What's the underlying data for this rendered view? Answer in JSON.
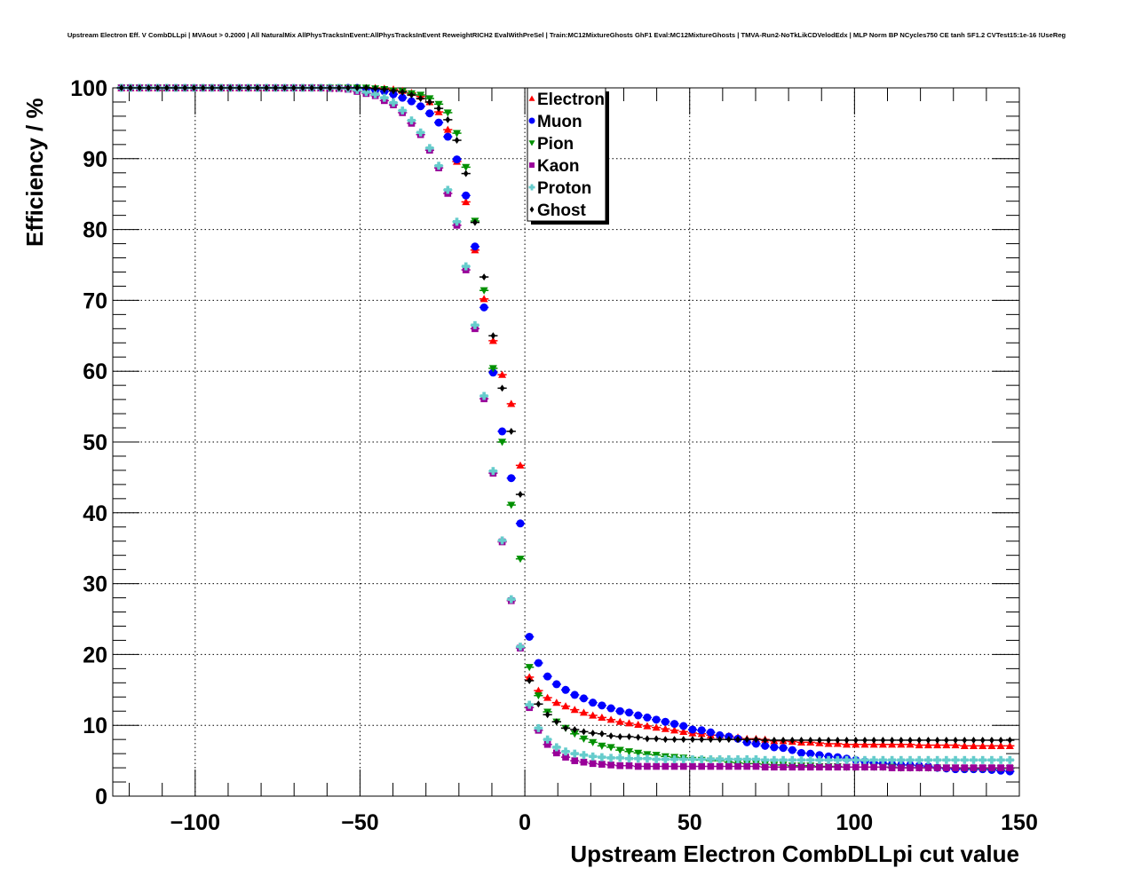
{
  "chart_data": {
    "type": "scatter",
    "title": "Upstream Electron Eff. V CombDLLpi | MVAout > 0.2000 | All NaturalMix AllPhysTracksInEvent:AllPhysTracksInEvent ReweightRICH2 EvalWithPreSel | Train:MC12MixtureGhosts GhF1 Eval:MC12MixtureGhosts | TMVA-Run2-NoTkLikCDVelodEdx | MLP Norm BP NCycles750 CE tanh SF1.2 CVTest15:1e-16 !UseReg",
    "xlabel": "Upstream Electron CombDLLpi cut value",
    "ylabel": "Efficiency / %",
    "xlim": [
      -125,
      150
    ],
    "ylim": [
      0,
      100
    ],
    "grid": true,
    "legend_placement": "top-center",
    "xticks": [
      "−100",
      "−50",
      "0",
      "50",
      "100",
      "150"
    ],
    "xtick_values": [
      -100,
      -50,
      0,
      50,
      100,
      150
    ],
    "yticks": [
      "0",
      "10",
      "20",
      "30",
      "40",
      "50",
      "60",
      "70",
      "80",
      "90",
      "100"
    ],
    "ytick_values": [
      0,
      10,
      20,
      30,
      40,
      50,
      60,
      70,
      80,
      90,
      100
    ],
    "x": {
      "first": -125.125,
      "step": 2.75,
      "count": 100
    },
    "series": [
      {
        "name": "Electron",
        "color": "#ff0000",
        "marker": "triangle-up",
        "values": [
          100,
          100,
          100,
          100,
          100,
          100,
          100,
          100,
          100,
          100,
          100,
          100,
          100,
          100,
          100,
          100,
          100,
          100,
          100,
          100,
          100,
          100,
          100,
          100,
          100,
          100,
          100,
          100,
          100,
          100,
          99.9,
          99.8,
          99.6,
          99.3,
          98.8,
          98.0,
          96.6,
          94.1,
          89.6,
          83.9,
          77.1,
          70.2,
          64.3,
          59.5,
          55.4,
          46.7,
          16.8,
          14.9,
          13.9,
          13.2,
          12.7,
          12.2,
          11.8,
          11.4,
          11.1,
          10.8,
          10.5,
          10.3,
          10.1,
          9.9,
          9.7,
          9.5,
          9.3,
          9.1,
          8.9,
          8.8,
          8.6,
          8.6,
          8.5,
          8.3,
          8.1,
          8.1,
          8.0,
          7.8,
          7.8,
          7.7,
          7.6,
          7.6,
          7.5,
          7.4,
          7.4,
          7.3,
          7.3,
          7.3,
          7.3,
          7.3,
          7.3,
          7.3,
          7.3,
          7.2,
          7.2,
          7.2,
          7.2,
          7.2,
          7.1,
          7.1,
          7.1,
          7.1,
          7.1,
          7.1
        ]
      },
      {
        "name": "Muon",
        "color": "#0000ff",
        "marker": "circle",
        "values": [
          100,
          100,
          100,
          100,
          100,
          100,
          100,
          100,
          100,
          100,
          100,
          100,
          100,
          100,
          100,
          100,
          100,
          100,
          100,
          100,
          100,
          100,
          100,
          100,
          100,
          100,
          100,
          100,
          99.9,
          99.7,
          99.5,
          99.1,
          98.6,
          98.1,
          97.4,
          96.4,
          95.1,
          93.1,
          89.9,
          84.8,
          77.6,
          69.0,
          59.8,
          51.5,
          44.9,
          38.5,
          22.5,
          18.8,
          16.9,
          15.8,
          15.0,
          14.3,
          13.8,
          13.2,
          12.8,
          12.4,
          12.0,
          11.8,
          11.4,
          11.1,
          10.8,
          10.5,
          10.2,
          9.9,
          9.4,
          9.3,
          9.0,
          8.6,
          8.4,
          8.1,
          7.6,
          7.4,
          7.1,
          6.9,
          6.8,
          6.5,
          6.1,
          6.0,
          5.8,
          5.6,
          5.5,
          5.3,
          5.1,
          4.9,
          4.7,
          4.6,
          4.5,
          4.4,
          4.4,
          4.3,
          4.2,
          4.0,
          3.9,
          3.8,
          3.8,
          3.8,
          3.8,
          3.7,
          3.6,
          3.5
        ]
      },
      {
        "name": "Pion",
        "color": "#009000",
        "marker": "triangle-down",
        "values": [
          100,
          100,
          100,
          100,
          100,
          100,
          100,
          100,
          100,
          100,
          100,
          100,
          100,
          100,
          100,
          100,
          100,
          100,
          100,
          100,
          100,
          100,
          100,
          100,
          100,
          100,
          100,
          100,
          100,
          99.9,
          99.8,
          99.6,
          99.5,
          99.2,
          99.0,
          98.5,
          97.7,
          96.5,
          93.6,
          88.8,
          81.2,
          71.4,
          60.4,
          50.0,
          41.1,
          33.5,
          18.2,
          14.2,
          11.9,
          10.5,
          9.6,
          8.8,
          8.1,
          7.6,
          7.1,
          6.9,
          6.5,
          6.3,
          6.1,
          5.9,
          5.8,
          5.6,
          5.5,
          5.4,
          5.1,
          5.1,
          5.0,
          5.0,
          4.8,
          4.7,
          4.6,
          4.6,
          4.5,
          4.4,
          4.4,
          4.3,
          4.3,
          4.3,
          4.2,
          4.2,
          4.2,
          4.1,
          4.1,
          4.1,
          4.1,
          4.1,
          4.1,
          4.0,
          4.0,
          4.0,
          4.0,
          4.0,
          4.0,
          4.0,
          3.9,
          3.9,
          3.9,
          3.9,
          3.9,
          3.9
        ]
      },
      {
        "name": "Kaon",
        "color": "#990099",
        "marker": "square",
        "values": [
          100,
          100,
          100,
          100,
          100,
          100,
          100,
          100,
          100,
          100,
          100,
          100,
          100,
          100,
          100,
          100,
          100,
          100,
          100,
          100,
          100,
          100,
          100,
          100,
          99.9,
          99.9,
          99.8,
          99.5,
          99.2,
          98.9,
          98.2,
          97.6,
          96.5,
          95.0,
          93.4,
          91.2,
          88.7,
          85.1,
          80.6,
          74.3,
          66.0,
          56.1,
          45.6,
          35.9,
          27.6,
          20.9,
          12.5,
          9.3,
          7.3,
          6.1,
          5.5,
          5.0,
          4.8,
          4.6,
          4.5,
          4.4,
          4.3,
          4.3,
          4.2,
          4.2,
          4.2,
          4.2,
          4.2,
          4.2,
          4.2,
          4.2,
          4.2,
          4.2,
          4.2,
          4.2,
          4.2,
          4.2,
          4.1,
          4.1,
          4.1,
          4.1,
          4.1,
          4.1,
          4.1,
          4.1,
          4.1,
          4.1,
          4.1,
          4.1,
          4.1,
          4.1,
          4.0,
          4.0,
          4.0,
          4.0,
          4.0,
          4.0,
          4.0,
          4.0,
          4.0,
          4.0,
          4.0,
          4.0,
          4.0,
          4.0
        ]
      },
      {
        "name": "Proton",
        "color": "#66cccc",
        "marker": "cross",
        "values": [
          100,
          100,
          100,
          100,
          100,
          100,
          100,
          100,
          100,
          100,
          100,
          100,
          100,
          100,
          100,
          100,
          100,
          100,
          100,
          100,
          100,
          100,
          100,
          100,
          100,
          100,
          99.9,
          99.7,
          99.4,
          99.1,
          98.6,
          97.9,
          96.8,
          95.4,
          93.7,
          91.5,
          89.0,
          85.6,
          81.1,
          74.8,
          66.5,
          56.5,
          45.9,
          36.1,
          27.8,
          21.1,
          12.9,
          9.6,
          8.0,
          6.9,
          6.3,
          6.0,
          5.8,
          5.6,
          5.5,
          5.4,
          5.4,
          5.3,
          5.3,
          5.3,
          5.2,
          5.2,
          5.2,
          5.2,
          5.2,
          5.2,
          5.2,
          5.2,
          5.2,
          5.2,
          5.2,
          5.2,
          5.1,
          5.1,
          5.1,
          5.1,
          5.1,
          5.1,
          5.1,
          5.1,
          5.1,
          5.1,
          5.1,
          5.1,
          5.1,
          5.1,
          5.1,
          5.1,
          5.1,
          5.1,
          5.1,
          5.1,
          5.1,
          5.1,
          5.1,
          5.1,
          5.1,
          5.1,
          5.1,
          5.1
        ]
      },
      {
        "name": "Ghost",
        "color": "#000000",
        "marker": "diamond",
        "values": [
          100,
          100,
          100,
          100,
          100,
          100,
          100,
          100,
          100,
          100,
          100,
          100,
          100,
          100,
          100,
          100,
          100,
          100,
          100,
          100,
          100,
          100,
          100,
          100,
          100,
          100,
          100,
          100,
          100,
          99.9,
          99.8,
          99.6,
          99.4,
          99.0,
          98.5,
          98.0,
          97.1,
          95.5,
          92.6,
          87.9,
          81.0,
          73.3,
          65.0,
          57.6,
          51.5,
          42.6,
          16.3,
          13.0,
          11.5,
          10.5,
          9.6,
          9.4,
          9.1,
          8.9,
          8.8,
          8.5,
          8.4,
          8.4,
          8.3,
          8.1,
          8.1,
          8.0,
          8.0,
          8.0,
          8.0,
          8.0,
          8.0,
          8.0,
          8.0,
          8.0,
          8.0,
          8.0,
          7.9,
          7.9,
          7.9,
          7.9,
          7.9,
          7.9,
          7.9,
          7.9,
          7.9,
          7.9,
          7.9,
          7.9,
          7.9,
          7.9,
          7.9,
          7.9,
          7.9,
          7.9,
          7.9,
          7.9,
          7.9,
          7.9,
          7.9,
          7.9,
          7.9,
          7.9,
          7.9,
          7.9
        ]
      }
    ]
  }
}
